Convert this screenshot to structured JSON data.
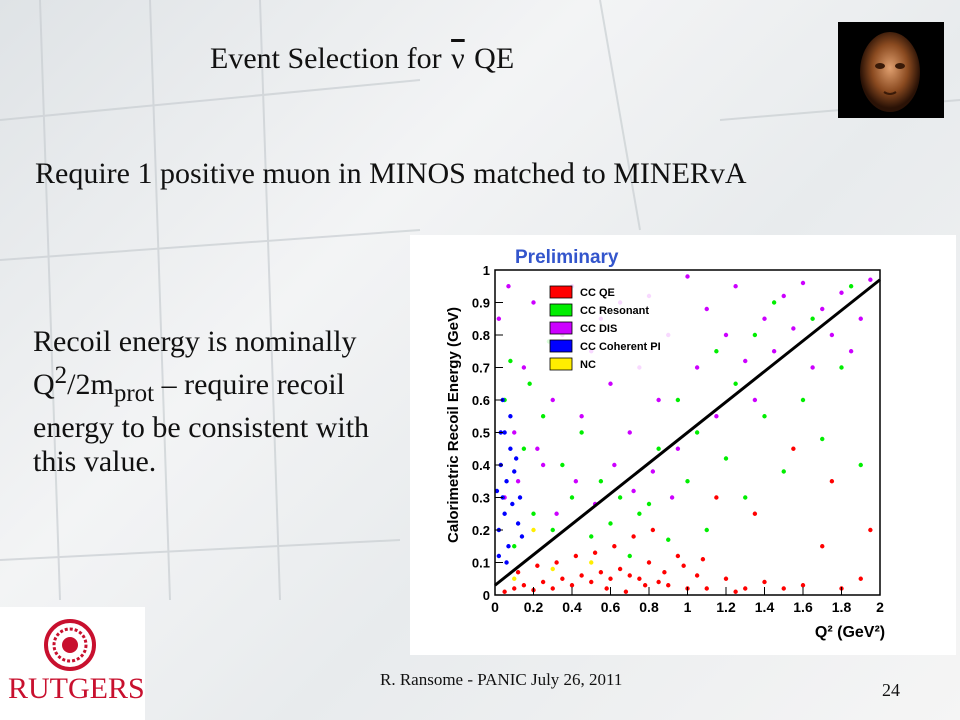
{
  "slide": {
    "title_prefix": "Event Selection  for",
    "title_symbol": "ν",
    "title_suffix": "QE",
    "requirement": "Require 1 positive  muon in MINOS matched to MINERvA",
    "recoil_a": "Recoil energy is nominally Q",
    "recoil_sup": "2",
    "recoil_b": "/2m",
    "recoil_sub": "prot",
    "recoil_c": " – require recoil energy to be consistent  with this value.",
    "footer": "R. Ransome - PANIC July 26, 2011",
    "page_number": "24",
    "logo_text": "RUTGERS"
  },
  "chart_data": {
    "type": "scatter",
    "title": "Preliminary",
    "xlabel": "Q² (GeV²)",
    "ylabel": "Calorimetric Recoil Energy (GeV)",
    "xlim": [
      0,
      2
    ],
    "ylim": [
      0,
      1
    ],
    "xticks": [
      "0",
      "0.2",
      "0.4",
      "0.6",
      "0.8",
      "1",
      "1.2",
      "1.4",
      "1.6",
      "1.8",
      "2"
    ],
    "yticks": [
      "0",
      "0.1",
      "0.2",
      "0.3",
      "0.4",
      "0.5",
      "0.6",
      "0.7",
      "0.8",
      "0.9",
      "1"
    ],
    "legend_position": "top-left",
    "series": [
      {
        "name": "CC QE",
        "color": "#ff0000",
        "points": [
          [
            0.05,
            0.01
          ],
          [
            0.1,
            0.02
          ],
          [
            0.15,
            0.03
          ],
          [
            0.2,
            0.015
          ],
          [
            0.25,
            0.04
          ],
          [
            0.3,
            0.02
          ],
          [
            0.35,
            0.05
          ],
          [
            0.4,
            0.03
          ],
          [
            0.45,
            0.06
          ],
          [
            0.5,
            0.04
          ],
          [
            0.55,
            0.07
          ],
          [
            0.6,
            0.05
          ],
          [
            0.65,
            0.08
          ],
          [
            0.7,
            0.06
          ],
          [
            0.75,
            0.05
          ],
          [
            0.8,
            0.1
          ],
          [
            0.85,
            0.04
          ],
          [
            0.9,
            0.03
          ],
          [
            0.95,
            0.12
          ],
          [
            1.0,
            0.02
          ],
          [
            1.05,
            0.06
          ],
          [
            1.1,
            0.02
          ],
          [
            1.2,
            0.05
          ],
          [
            1.3,
            0.02
          ],
          [
            1.4,
            0.04
          ],
          [
            1.5,
            0.02
          ],
          [
            1.6,
            0.03
          ],
          [
            1.7,
            0.15
          ],
          [
            1.8,
            0.02
          ],
          [
            1.9,
            0.05
          ],
          [
            0.12,
            0.07
          ],
          [
            0.22,
            0.09
          ],
          [
            0.32,
            0.1
          ],
          [
            0.42,
            0.12
          ],
          [
            0.52,
            0.13
          ],
          [
            0.62,
            0.15
          ],
          [
            0.72,
            0.18
          ],
          [
            0.82,
            0.2
          ],
          [
            1.15,
            0.3
          ],
          [
            1.35,
            0.25
          ],
          [
            1.55,
            0.45
          ],
          [
            1.75,
            0.35
          ],
          [
            1.95,
            0.2
          ],
          [
            0.58,
            0.02
          ],
          [
            0.68,
            0.01
          ],
          [
            0.78,
            0.03
          ],
          [
            0.88,
            0.07
          ],
          [
            0.98,
            0.09
          ],
          [
            1.08,
            0.11
          ],
          [
            1.25,
            0.01
          ]
        ]
      },
      {
        "name": "CC Resonant",
        "color": "#00ee00",
        "points": [
          [
            0.1,
            0.15
          ],
          [
            0.2,
            0.25
          ],
          [
            0.3,
            0.2
          ],
          [
            0.4,
            0.3
          ],
          [
            0.5,
            0.18
          ],
          [
            0.6,
            0.22
          ],
          [
            0.7,
            0.12
          ],
          [
            0.8,
            0.28
          ],
          [
            0.9,
            0.17
          ],
          [
            1.0,
            0.35
          ],
          [
            1.1,
            0.2
          ],
          [
            1.2,
            0.42
          ],
          [
            1.3,
            0.3
          ],
          [
            1.4,
            0.55
          ],
          [
            1.5,
            0.38
          ],
          [
            1.6,
            0.6
          ],
          [
            1.7,
            0.48
          ],
          [
            1.8,
            0.7
          ],
          [
            1.9,
            0.4
          ],
          [
            0.15,
            0.45
          ],
          [
            0.25,
            0.55
          ],
          [
            0.35,
            0.4
          ],
          [
            0.45,
            0.5
          ],
          [
            0.55,
            0.35
          ],
          [
            0.65,
            0.3
          ],
          [
            0.75,
            0.25
          ],
          [
            0.85,
            0.45
          ],
          [
            0.95,
            0.6
          ],
          [
            1.05,
            0.5
          ],
          [
            1.15,
            0.75
          ],
          [
            1.25,
            0.65
          ],
          [
            1.35,
            0.8
          ],
          [
            1.45,
            0.9
          ],
          [
            1.65,
            0.85
          ],
          [
            1.85,
            0.95
          ],
          [
            0.05,
            0.6
          ],
          [
            0.08,
            0.72
          ],
          [
            0.18,
            0.65
          ],
          [
            0.28,
            0.78
          ],
          [
            0.38,
            0.7
          ]
        ]
      },
      {
        "name": "CC DIS",
        "color": "#cc00ff",
        "points": [
          [
            0.05,
            0.3
          ],
          [
            0.1,
            0.5
          ],
          [
            0.15,
            0.7
          ],
          [
            0.2,
            0.9
          ],
          [
            0.25,
            0.4
          ],
          [
            0.3,
            0.6
          ],
          [
            0.35,
            0.8
          ],
          [
            0.4,
            0.95
          ],
          [
            0.45,
            0.55
          ],
          [
            0.5,
            0.75
          ],
          [
            0.55,
            0.85
          ],
          [
            0.6,
            0.65
          ],
          [
            0.65,
            0.9
          ],
          [
            0.7,
            0.5
          ],
          [
            0.75,
            0.7
          ],
          [
            0.8,
            0.92
          ],
          [
            0.85,
            0.6
          ],
          [
            0.9,
            0.8
          ],
          [
            0.95,
            0.45
          ],
          [
            1.0,
            0.98
          ],
          [
            1.05,
            0.7
          ],
          [
            1.1,
            0.88
          ],
          [
            1.15,
            0.55
          ],
          [
            1.2,
            0.8
          ],
          [
            1.25,
            0.95
          ],
          [
            1.3,
            0.72
          ],
          [
            1.35,
            0.6
          ],
          [
            1.4,
            0.85
          ],
          [
            1.45,
            0.75
          ],
          [
            1.5,
            0.92
          ],
          [
            1.55,
            0.82
          ],
          [
            1.6,
            0.96
          ],
          [
            1.65,
            0.7
          ],
          [
            1.7,
            0.88
          ],
          [
            1.75,
            0.8
          ],
          [
            1.8,
            0.93
          ],
          [
            1.85,
            0.75
          ],
          [
            1.9,
            0.85
          ],
          [
            1.95,
            0.97
          ],
          [
            0.12,
            0.35
          ],
          [
            0.22,
            0.45
          ],
          [
            0.32,
            0.25
          ],
          [
            0.42,
            0.35
          ],
          [
            0.52,
            0.28
          ],
          [
            0.62,
            0.4
          ],
          [
            0.72,
            0.32
          ],
          [
            0.82,
            0.38
          ],
          [
            0.92,
            0.3
          ],
          [
            0.02,
            0.85
          ],
          [
            0.07,
            0.95
          ]
        ]
      },
      {
        "name": "CC Coherent PI",
        "color": "#0000ff",
        "points": [
          [
            0.02,
            0.2
          ],
          [
            0.04,
            0.3
          ],
          [
            0.03,
            0.4
          ],
          [
            0.05,
            0.25
          ],
          [
            0.06,
            0.35
          ],
          [
            0.08,
            0.45
          ],
          [
            0.03,
            0.5
          ],
          [
            0.07,
            0.15
          ],
          [
            0.09,
            0.28
          ],
          [
            0.1,
            0.38
          ],
          [
            0.12,
            0.22
          ],
          [
            0.04,
            0.6
          ],
          [
            0.06,
            0.1
          ],
          [
            0.02,
            0.12
          ],
          [
            0.05,
            0.5
          ],
          [
            0.08,
            0.55
          ],
          [
            0.11,
            0.42
          ],
          [
            0.13,
            0.3
          ],
          [
            0.14,
            0.18
          ],
          [
            0.01,
            0.32
          ]
        ]
      },
      {
        "name": "NC",
        "color": "#ffee00",
        "points": [
          [
            0.1,
            0.05
          ],
          [
            0.3,
            0.08
          ],
          [
            0.5,
            0.1
          ],
          [
            0.2,
            0.2
          ]
        ]
      }
    ],
    "cut_line": {
      "x": [
        0,
        2
      ],
      "y": [
        0.03,
        0.97
      ]
    }
  }
}
